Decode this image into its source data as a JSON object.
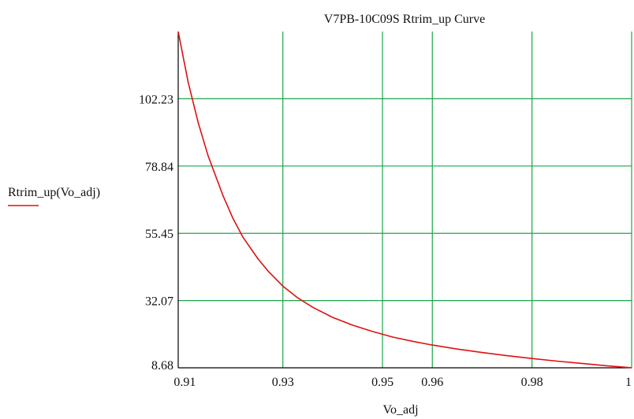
{
  "chart_data": {
    "type": "line",
    "title": "V7PB-10C09S Rtrim_up Curve",
    "xlabel": "Vo_adj",
    "ylabel": "",
    "x_ticks": [
      "0.91",
      "0.93",
      "0.95",
      "0.96",
      "0.98",
      "1"
    ],
    "y_ticks": [
      "8.68",
      "32.07",
      "55.45",
      "78.84",
      "102.23"
    ],
    "xlim": [
      0.909,
      1.0
    ],
    "ylim": [
      8.68,
      125.62
    ],
    "grid": true,
    "legend": {
      "position": "left",
      "entries": [
        "Rtrim_up(Vo_adj)"
      ]
    },
    "series": [
      {
        "name": "Rtrim_up(Vo_adj)",
        "color": "#e01010",
        "x": [
          0.909,
          0.911,
          0.913,
          0.915,
          0.918,
          0.92,
          0.922,
          0.925,
          0.927,
          0.93,
          0.933,
          0.936,
          0.94,
          0.944,
          0.948,
          0.952,
          0.956,
          0.96,
          0.965,
          0.97,
          0.975,
          0.98,
          0.985,
          0.99,
          0.995,
          1.0
        ],
        "y": [
          125.6,
          108.0,
          94.0,
          82.4,
          68.5,
          60.6,
          54.1,
          46.6,
          42.4,
          37.1,
          33.0,
          29.7,
          26.2,
          23.5,
          21.3,
          19.4,
          17.9,
          16.6,
          15.2,
          14.0,
          12.9,
          11.9,
          11.0,
          10.2,
          9.4,
          8.7
        ]
      }
    ]
  }
}
